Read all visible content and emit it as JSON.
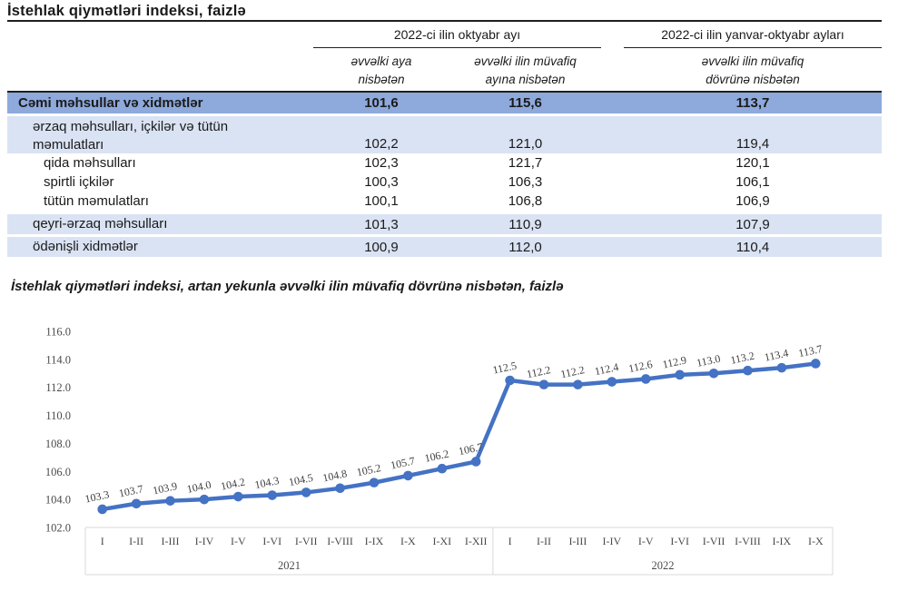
{
  "table": {
    "title": "İstehlak qiymətləri indeksi, faizlə",
    "col_groups": [
      {
        "label": "2022-ci ilin oktyabr ayı"
      },
      {
        "label": "2022-ci ilin yanvar-oktyabr ayları"
      }
    ],
    "sub_headers": [
      "əvvəlki aya\nnisbətən",
      "əvvəlki ilin müvafiq\nayına nisbətən",
      "əvvəlki ilin müvafiq\ndövrünə nisbətən"
    ],
    "rows": [
      {
        "label": "Cəmi məhsullar və xidmətlər",
        "indent": 0,
        "style": "total",
        "values": [
          "101,6",
          "115,6",
          "113,7"
        ]
      },
      {
        "label": "ərzaq məhsulları, içkilər və tütün\nməmulatları",
        "indent": 1,
        "style": "stripe",
        "values": [
          "102,2",
          "121,0",
          "119,4"
        ]
      },
      {
        "label": "qida məhsulları",
        "indent": 2,
        "style": "plain",
        "values": [
          "102,3",
          "121,7",
          "120,1"
        ]
      },
      {
        "label": "spirtli içkilər",
        "indent": 2,
        "style": "plain",
        "values": [
          "100,3",
          "106,3",
          "106,1"
        ]
      },
      {
        "label": "tütün məmulatları",
        "indent": 2,
        "style": "plain",
        "values": [
          "100,1",
          "106,8",
          "106,9"
        ]
      },
      {
        "label": "qeyri-ərzaq məhsulları",
        "indent": 1,
        "style": "stripe",
        "values": [
          "101,3",
          "110,9",
          "107,9"
        ]
      },
      {
        "label": "ödənişli xidmətlər",
        "indent": 1,
        "style": "stripe",
        "values": [
          "100,9",
          "112,0",
          "110,4"
        ]
      }
    ]
  },
  "chart_data": {
    "type": "line",
    "title": "İstehlak qiymətləri indeksi, artan yekunla əvvəlki ilin müvafiq dövrünə nisbətən, faizlə",
    "x": [
      "I",
      "I-II",
      "I-III",
      "I-IV",
      "I-V",
      "I-VI",
      "I-VII",
      "I-VIII",
      "I-IX",
      "I-X",
      "I-XI",
      "I-XII",
      "I",
      "I-II",
      "I-III",
      "I-IV",
      "I-V",
      "I-VI",
      "I-VII",
      "I-VIII",
      "I-IX",
      "I-X"
    ],
    "x_groups": [
      {
        "label": "2021",
        "count": 12
      },
      {
        "label": "2022",
        "count": 10
      }
    ],
    "series": [
      {
        "name": "İstehlak qiymətləri indeksi",
        "values": [
          103.3,
          103.7,
          103.9,
          104.0,
          104.2,
          104.3,
          104.5,
          104.8,
          105.2,
          105.7,
          106.2,
          106.7,
          112.5,
          112.2,
          112.2,
          112.4,
          112.6,
          112.9,
          113.0,
          113.2,
          113.4,
          113.7
        ]
      }
    ],
    "ylim": [
      102.0,
      116.0
    ],
    "ytick_step": 2.0,
    "grid": false,
    "legend": false,
    "data_labels": true
  },
  "colors": {
    "accent": "#4472C4",
    "total_row_bg": "#8EA9DB",
    "stripe_row_bg": "#DAE3F3",
    "rule": "#1F1F1F",
    "axis_line": "#D9D9D9",
    "axis_text": "#4A4A4A",
    "label_text": "#404040"
  }
}
